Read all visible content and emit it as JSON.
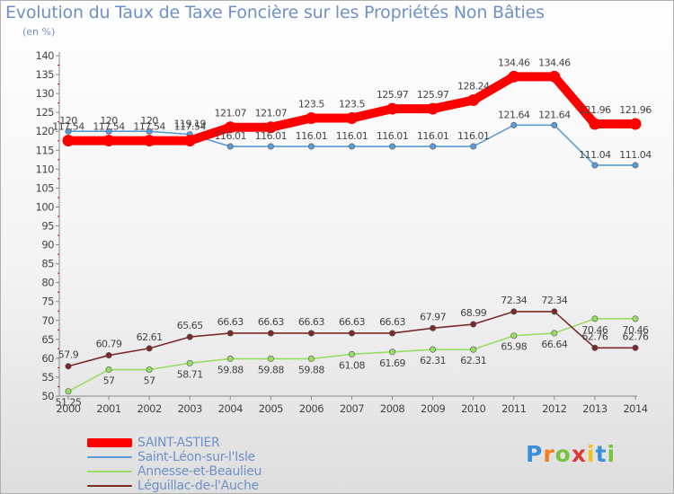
{
  "title": "Evolution du Taux de Taxe Foncière sur les Propriétés Non Bâties",
  "subtitle": "(en %)",
  "logo": {
    "letters": [
      "P",
      "r",
      "o",
      "x",
      "i",
      "t",
      "i"
    ],
    "colors": [
      "#3b8fd9",
      "#f07d20",
      "#7cc242",
      "#d93b3b",
      "#f2c21a",
      "#3b8fd9",
      "#7cc242"
    ]
  },
  "colors": {
    "saint_astier": "#ff0000",
    "saint_leon": "#5b9bd5",
    "annesse": "#99dd66",
    "leguillac": "#7a2a2a",
    "axis": "#888888",
    "grid": "#e0e0e0",
    "label": "#444444",
    "tick_red": "#cc0000"
  },
  "chart_data": {
    "type": "line",
    "title": "Evolution du Taux de Taxe Foncière sur les Propriétés Non Bâties",
    "ylabel": "(en %)",
    "xlabel": "",
    "x": [
      "2000",
      "2001",
      "2002",
      "2003",
      "2004",
      "2005",
      "2006",
      "2007",
      "2008",
      "2009",
      "2010",
      "2011",
      "2012",
      "2013",
      "2014"
    ],
    "ylim": [
      50,
      140
    ],
    "yticks": [
      "50",
      "55",
      "60",
      "65",
      "70",
      "75",
      "80",
      "85",
      "90",
      "95",
      "100",
      "105",
      "110",
      "115",
      "120",
      "125",
      "130",
      "135",
      "140"
    ],
    "grid": false,
    "legend": "bottom-left",
    "series": [
      {
        "name": "SAINT-ASTIER",
        "key": "saint_astier",
        "values": [
          117.54,
          117.54,
          117.54,
          117.54,
          121.07,
          121.07,
          123.5,
          123.5,
          125.97,
          125.97,
          128.24,
          134.46,
          134.46,
          121.96,
          121.96
        ],
        "labels": [
          "117.54",
          "117.54",
          "117.54",
          "117.54",
          "121.07",
          "121.07",
          "123.5",
          "123.5",
          "125.97",
          "125.97",
          "128.24",
          "134.46",
          "134.46",
          "121.96",
          "121.96"
        ]
      },
      {
        "name": "Saint-Léon-sur-l'Isle",
        "key": "saint_leon",
        "values": [
          120,
          120,
          120,
          119.19,
          116.01,
          116.01,
          116.01,
          116.01,
          116.01,
          116.01,
          116.01,
          121.64,
          121.64,
          111.04,
          111.04
        ],
        "labels": [
          "120",
          "120",
          "120",
          "119.19",
          "116.01",
          "116.01",
          "116.01",
          "116.01",
          "116.01",
          "116.01",
          "116.01",
          "121.64",
          "121.64",
          "111.04",
          "111.04"
        ]
      },
      {
        "name": "Annesse-et-Beaulieu",
        "key": "annesse",
        "values": [
          51.25,
          57,
          57,
          58.71,
          59.88,
          59.88,
          59.88,
          61.08,
          61.69,
          62.31,
          62.31,
          65.98,
          66.64,
          70.46,
          70.46
        ],
        "labels": [
          "51.25",
          "57",
          "57",
          "58.71",
          "59.88",
          "59.88",
          "59.88",
          "61.08",
          "61.69",
          "62.31",
          "62.31",
          "65.98",
          "66.64",
          "70.46",
          "70.46"
        ]
      },
      {
        "name": "Léguillac-de-l'Auche",
        "key": "leguillac",
        "values": [
          57.9,
          60.79,
          62.61,
          65.65,
          66.63,
          66.63,
          66.63,
          66.63,
          66.63,
          67.97,
          68.99,
          72.34,
          72.34,
          62.76,
          62.76
        ],
        "labels": [
          "57.9",
          "60.79",
          "62.61",
          "65.65",
          "66.63",
          "66.63",
          "66.63",
          "66.63",
          "66.63",
          "67.97",
          "68.99",
          "72.34",
          "72.34",
          "62.76",
          "62.76"
        ]
      }
    ]
  }
}
